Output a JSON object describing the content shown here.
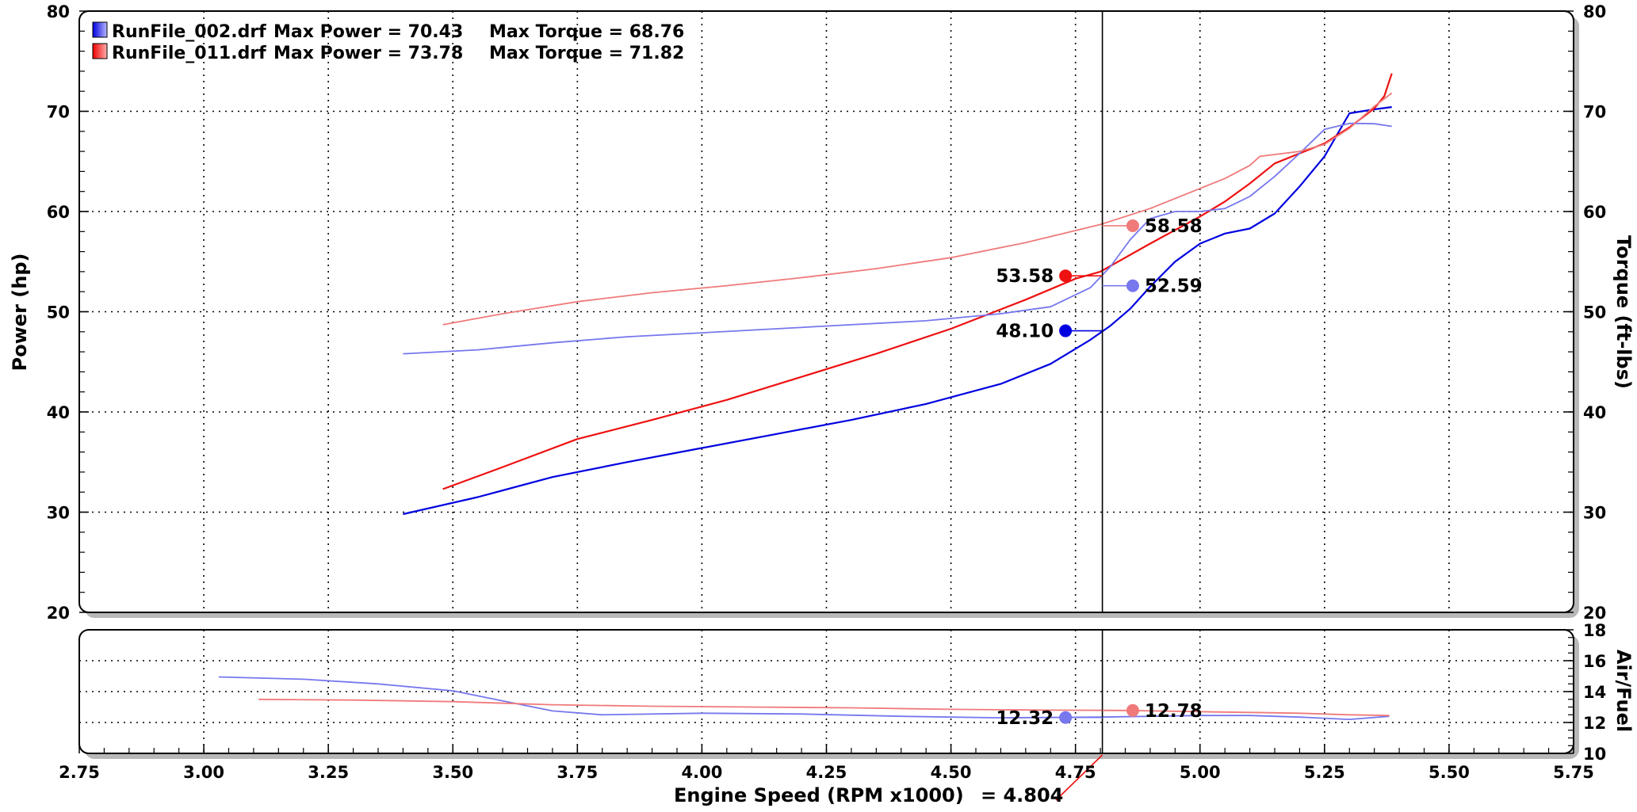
{
  "legend": [
    {
      "file": "RunFile_002.drf",
      "power_text": "Max Power = 70.43",
      "torque_text": "Max Torque = 68.76",
      "color": "#0000e0"
    },
    {
      "file": "RunFile_011.drf",
      "power_text": "Max Power = 73.78",
      "torque_text": "Max Torque = 71.82",
      "color": "#ee1111"
    }
  ],
  "cursor": {
    "rpm": 4.804,
    "readout": "= 4.804"
  },
  "callouts": {
    "power_002": "48.10",
    "power_011": "53.58",
    "torque_002": "52.59",
    "torque_011": "58.58",
    "afr_002": "12.32",
    "afr_011": "12.78"
  },
  "colors": {
    "power_002": "#0000e0",
    "power_011": "#ee1111",
    "torque_002": "#7777ee",
    "torque_011": "#f07a7a"
  },
  "chart_data": [
    {
      "type": "line",
      "panel": "power-torque",
      "xlabel": "Engine Speed (RPM x1000)",
      "ylabel": "Power (hp)",
      "y2label": "Torque (ft-lbs)",
      "xlim": [
        2.75,
        5.75
      ],
      "ylim": [
        20,
        80
      ],
      "y2lim": [
        20,
        80
      ],
      "x_ticks": [
        "2.75",
        "3.00",
        "3.25",
        "3.50",
        "3.75",
        "4.00",
        "4.25",
        "4.50",
        "4.75",
        "5.00",
        "5.25",
        "5.50",
        "5.75"
      ],
      "y_ticks": [
        "20",
        "30",
        "40",
        "50",
        "60",
        "70",
        "80"
      ],
      "y2_ticks": [
        "20",
        "30",
        "40",
        "50",
        "60",
        "70",
        "80"
      ],
      "grid": true,
      "legend_position": "top-left",
      "series": [
        {
          "name": "RunFile_002.drf",
          "quantity": "power",
          "x": [
            3.4,
            3.55,
            3.7,
            3.85,
            4.0,
            4.15,
            4.3,
            4.45,
            4.6,
            4.7,
            4.78,
            4.82,
            4.86,
            4.9,
            4.95,
            5.0,
            5.05,
            5.1,
            5.15,
            5.2,
            5.25,
            5.3,
            5.35,
            5.385
          ],
          "y": [
            29.8,
            31.5,
            33.5,
            35.0,
            36.4,
            37.8,
            39.2,
            40.8,
            42.8,
            44.8,
            47.2,
            48.6,
            50.3,
            52.5,
            55.0,
            56.8,
            57.8,
            58.3,
            59.8,
            62.5,
            65.5,
            69.8,
            70.2,
            70.43
          ]
        },
        {
          "name": "RunFile_011.drf",
          "quantity": "power",
          "x": [
            3.48,
            3.6,
            3.75,
            3.9,
            4.05,
            4.2,
            4.35,
            4.5,
            4.65,
            4.75,
            4.8,
            4.9,
            5.0,
            5.05,
            5.1,
            5.15,
            5.2,
            5.25,
            5.3,
            5.35,
            5.37,
            5.385
          ],
          "y": [
            32.3,
            34.5,
            37.3,
            39.2,
            41.2,
            43.5,
            45.8,
            48.3,
            51.2,
            53.3,
            54.0,
            56.8,
            59.5,
            61.0,
            62.8,
            64.8,
            65.8,
            66.8,
            68.4,
            70.3,
            71.5,
            73.78
          ]
        },
        {
          "name": "RunFile_002.drf",
          "quantity": "torque",
          "x": [
            3.4,
            3.55,
            3.7,
            3.85,
            4.0,
            4.15,
            4.3,
            4.45,
            4.6,
            4.7,
            4.78,
            4.82,
            4.86,
            4.9,
            4.95,
            5.0,
            5.05,
            5.1,
            5.15,
            5.2,
            5.25,
            5.3,
            5.35,
            5.385
          ],
          "y": [
            45.8,
            46.2,
            46.9,
            47.5,
            47.9,
            48.3,
            48.7,
            49.1,
            49.8,
            50.5,
            52.4,
            54.5,
            57.2,
            59.3,
            60.0,
            60.0,
            60.3,
            61.5,
            63.5,
            65.8,
            68.2,
            68.8,
            68.76,
            68.5
          ]
        },
        {
          "name": "RunFile_011.drf",
          "quantity": "torque",
          "x": [
            3.48,
            3.6,
            3.75,
            3.9,
            4.05,
            4.2,
            4.35,
            4.5,
            4.65,
            4.75,
            4.8,
            4.9,
            5.0,
            5.05,
            5.1,
            5.12,
            5.2,
            5.25,
            5.3,
            5.35,
            5.385
          ],
          "y": [
            48.7,
            49.8,
            51.0,
            51.9,
            52.6,
            53.4,
            54.3,
            55.4,
            56.9,
            58.1,
            58.7,
            60.3,
            62.3,
            63.3,
            64.6,
            65.5,
            66.0,
            66.7,
            68.3,
            70.5,
            71.82
          ]
        }
      ]
    },
    {
      "type": "line",
      "panel": "air-fuel",
      "xlabel": "Engine Speed (RPM x1000)",
      "y2label": "Air/Fuel",
      "xlim": [
        2.75,
        5.75
      ],
      "y2lim": [
        10,
        18
      ],
      "y2_ticks": [
        "10",
        "12",
        "14",
        "16",
        "18"
      ],
      "grid": true,
      "series": [
        {
          "name": "RunFile_002.drf",
          "x": [
            3.03,
            3.2,
            3.35,
            3.5,
            3.6,
            3.7,
            3.8,
            4.0,
            4.2,
            4.4,
            4.6,
            4.8,
            5.0,
            5.1,
            5.2,
            5.3,
            5.38
          ],
          "y": [
            14.95,
            14.8,
            14.5,
            14.05,
            13.4,
            12.75,
            12.5,
            12.6,
            12.55,
            12.4,
            12.3,
            12.35,
            12.45,
            12.45,
            12.35,
            12.2,
            12.4
          ]
        },
        {
          "name": "RunFile_011.drf",
          "x": [
            3.11,
            3.3,
            3.5,
            3.7,
            3.9,
            4.1,
            4.3,
            4.5,
            4.7,
            4.85,
            5.0,
            5.1,
            5.2,
            5.3,
            5.38
          ],
          "y": [
            13.5,
            13.45,
            13.35,
            13.15,
            13.05,
            13.0,
            12.95,
            12.85,
            12.8,
            12.78,
            12.7,
            12.65,
            12.6,
            12.5,
            12.45
          ]
        }
      ]
    }
  ]
}
